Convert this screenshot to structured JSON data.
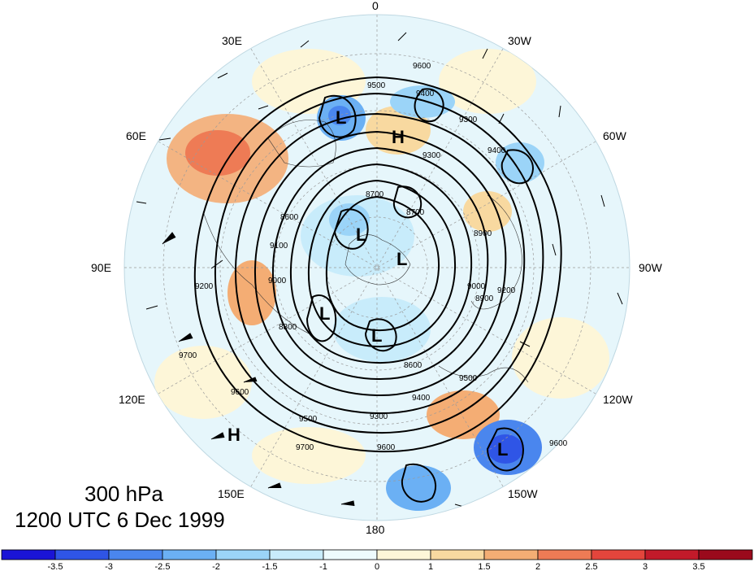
{
  "caption": {
    "level": "300 hPa",
    "valid_time": "1200 UTC 6 Dec 1999"
  },
  "longitude_labels": [
    "0",
    "30W",
    "60W",
    "90W",
    "120W",
    "150W",
    "180",
    "150E",
    "120E",
    "90E",
    "60E",
    "30E"
  ],
  "pressure_centers": [
    {
      "type": "H",
      "region": "east-atlantic"
    },
    {
      "type": "H",
      "region": "north-pacific"
    },
    {
      "type": "L",
      "region": "scandinavia"
    },
    {
      "type": "L",
      "region": "north-pole-a"
    },
    {
      "type": "L",
      "region": "north-pole-b"
    },
    {
      "type": "L",
      "region": "siberia"
    },
    {
      "type": "L",
      "region": "arctic-canada"
    },
    {
      "type": "L",
      "region": "gulf-of-alaska"
    }
  ],
  "contour_labels": [
    "9600",
    "9500",
    "9400",
    "9400",
    "9300",
    "9300",
    "9200",
    "9100",
    "9000",
    "8900",
    "8800",
    "8700",
    "8600",
    "8600",
    "8700",
    "8900",
    "9000",
    "9200",
    "9300",
    "9400",
    "9500",
    "9600",
    "9700",
    "9700",
    "9600",
    "9500",
    "9600"
  ],
  "colorbar": {
    "ticks": [
      "-3.5",
      "-3",
      "-2.5",
      "-2",
      "-1.5",
      "-1",
      "0",
      "1",
      "1.5",
      "2",
      "2.5",
      "3",
      "3.5"
    ],
    "colors": [
      "#1a14d6",
      "#2f55e6",
      "#4a86ee",
      "#6bb0f4",
      "#9bd4f8",
      "#c8ecfb",
      "#eefbfd",
      "#fdf6d8",
      "#f8d9a0",
      "#f4ad74",
      "#ee7b55",
      "#e3453c",
      "#c21a2a",
      "#9a0a1c"
    ]
  },
  "legend_title": ""
}
